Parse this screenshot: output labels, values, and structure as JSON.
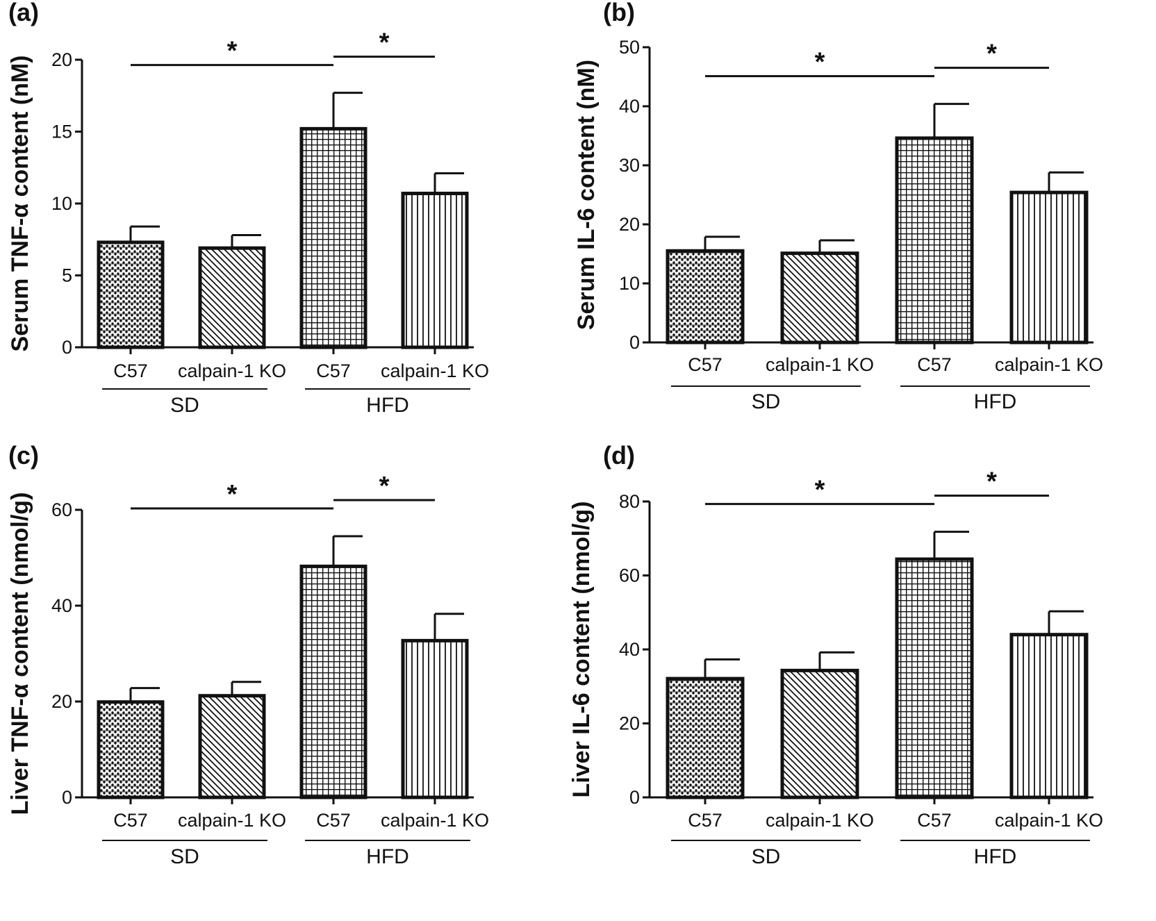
{
  "chart_data": [
    {
      "type": "bar",
      "panel": "(a)",
      "ylabel": "Serum  TNF-α  content (nM)",
      "ylim": [
        0,
        20
      ],
      "yticks": [
        "0",
        "5",
        "10",
        "15",
        "20"
      ],
      "categories": [
        "C57",
        "calpain-1 KO",
        "C57",
        "calpain-1 KO"
      ],
      "groups": [
        {
          "label": "SD",
          "members": [
            0,
            1
          ]
        },
        {
          "label": "HFD",
          "members": [
            2,
            3
          ]
        }
      ],
      "values": [
        7.3,
        6.9,
        15.2,
        10.7
      ],
      "errors": [
        1.1,
        0.9,
        2.5,
        1.4
      ],
      "significance": [
        {
          "from": 0,
          "to": 2,
          "label": "*"
        },
        {
          "from": 2,
          "to": 3,
          "label": "*"
        }
      ]
    },
    {
      "type": "bar",
      "panel": "(b)",
      "ylabel": "Serum  IL-6 content (nM)",
      "ylim": [
        0,
        50
      ],
      "yticks": [
        "0",
        "10",
        "20",
        "30",
        "40",
        "50"
      ],
      "categories": [
        "C57",
        "calpain-1 KO",
        "C57",
        "calpain-1 KO"
      ],
      "groups": [
        {
          "label": "SD",
          "members": [
            0,
            1
          ]
        },
        {
          "label": "HFD",
          "members": [
            2,
            3
          ]
        }
      ],
      "values": [
        15.5,
        15.1,
        34.6,
        25.4
      ],
      "errors": [
        2.4,
        2.2,
        5.8,
        3.4
      ],
      "significance": [
        {
          "from": 0,
          "to": 2,
          "label": "*"
        },
        {
          "from": 2,
          "to": 3,
          "label": "*"
        }
      ]
    },
    {
      "type": "bar",
      "panel": "(c)",
      "ylabel": "Liver  TNF-α  content (nmol/g)",
      "ylim": [
        0,
        60
      ],
      "yticks": [
        "0",
        "20",
        "40",
        "60"
      ],
      "categories": [
        "C57",
        "calpain-1 KO",
        "C57",
        "calpain-1 KO"
      ],
      "groups": [
        {
          "label": "SD",
          "members": [
            0,
            1
          ]
        },
        {
          "label": "HFD",
          "members": [
            2,
            3
          ]
        }
      ],
      "values": [
        19.9,
        21.2,
        48.2,
        32.7
      ],
      "errors": [
        2.9,
        2.9,
        6.3,
        5.6
      ],
      "significance": [
        {
          "from": 0,
          "to": 2,
          "label": "*"
        },
        {
          "from": 2,
          "to": 3,
          "label": "*"
        }
      ]
    },
    {
      "type": "bar",
      "panel": "(d)",
      "ylabel": "Liver  IL-6 content (nmol/g)",
      "ylim": [
        0,
        80
      ],
      "yticks": [
        "0",
        "20",
        "40",
        "60",
        "80"
      ],
      "categories": [
        "C57",
        "calpain-1 KO",
        "C57",
        "calpain-1 KO"
      ],
      "groups": [
        {
          "label": "SD",
          "members": [
            0,
            1
          ]
        },
        {
          "label": "HFD",
          "members": [
            2,
            3
          ]
        }
      ],
      "values": [
        32.1,
        34.3,
        64.4,
        44.0
      ],
      "errors": [
        5.2,
        4.9,
        7.4,
        6.3
      ],
      "significance": [
        {
          "from": 0,
          "to": 2,
          "label": "*"
        },
        {
          "from": 2,
          "to": 3,
          "label": "*"
        }
      ]
    }
  ]
}
